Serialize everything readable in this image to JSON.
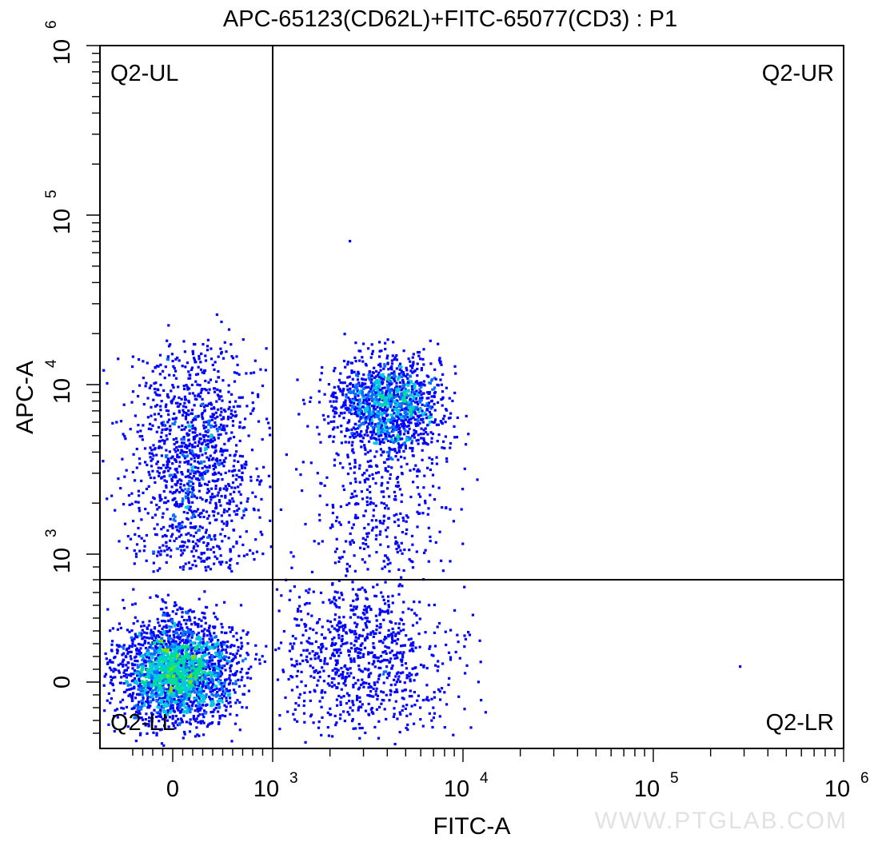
{
  "chart_data": {
    "type": "scatter",
    "style": "density-dot-plot",
    "title": "APC-65123(CD62L)+FITC-65077(CD3) : P1",
    "xlabel": "FITC-A",
    "ylabel": "APC-A",
    "x_scale": "biexponential",
    "y_scale": "biexponential",
    "xlim": [
      -400,
      1000000
    ],
    "ylim": [
      -400,
      1000000
    ],
    "x_ticks": [
      {
        "base": "0",
        "exp": ""
      },
      {
        "base": "10",
        "exp": "3"
      },
      {
        "base": "10",
        "exp": "4"
      },
      {
        "base": "10",
        "exp": "5"
      },
      {
        "base": "10",
        "exp": "6"
      }
    ],
    "y_ticks": [
      {
        "base": "0",
        "exp": ""
      },
      {
        "base": "10",
        "exp": "3"
      },
      {
        "base": "10",
        "exp": "4"
      },
      {
        "base": "10",
        "exp": "5"
      },
      {
        "base": "10",
        "exp": "6"
      }
    ],
    "gates": {
      "x_threshold": 1000,
      "y_threshold": 800
    },
    "quadrants": [
      {
        "id": "UL",
        "label": "Q2-UL"
      },
      {
        "id": "UR",
        "label": "Q2-UR"
      },
      {
        "id": "LL",
        "label": "Q2-LL"
      },
      {
        "id": "LR",
        "label": "Q2-LR"
      }
    ],
    "populations": [
      {
        "name": "Q2-LL cluster",
        "x_center": 0,
        "y_center": 0,
        "density": "high"
      },
      {
        "name": "Q2-UL cluster",
        "x_center": 100,
        "y_center": 3000,
        "density": "medium"
      },
      {
        "name": "Q2-UR cluster",
        "x_center": 4000,
        "y_center": 6500,
        "density": "high"
      },
      {
        "name": "Q2-LR cluster",
        "x_center": 3500,
        "y_center": 200,
        "density": "low"
      }
    ],
    "density_colors": [
      "#0000ff",
      "#0a6cff",
      "#00c8e0",
      "#00e08a",
      "#7fe000"
    ],
    "grid": false,
    "legend": "none"
  },
  "watermark": "WWW.PTGLAB.COM"
}
